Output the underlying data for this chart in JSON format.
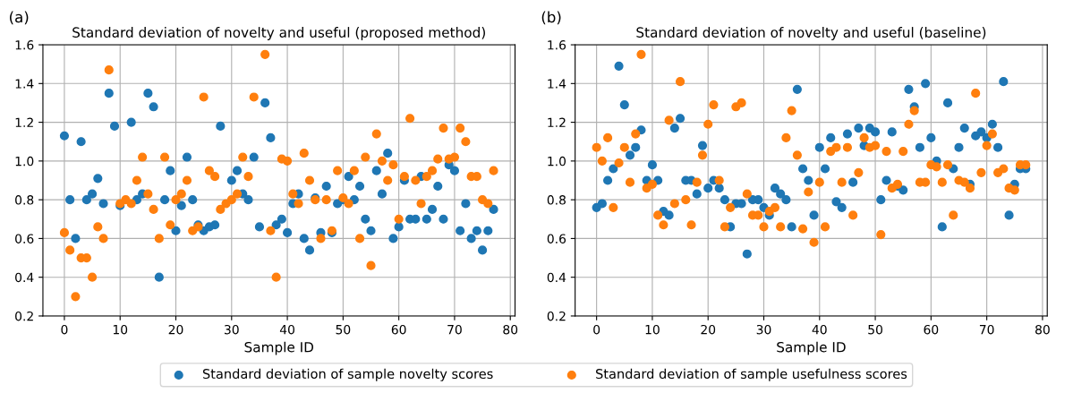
{
  "chart_data": [
    {
      "type": "scatter",
      "title": "Standard deviation of novelty and useful (proposed method)",
      "xlabel": "Sample ID",
      "annotations": [
        "(a)"
      ],
      "x": [
        0,
        1,
        2,
        3,
        4,
        5,
        6,
        7,
        8,
        9,
        10,
        11,
        12,
        13,
        14,
        15,
        16,
        17,
        18,
        19,
        20,
        21,
        22,
        23,
        24,
        25,
        26,
        27,
        28,
        29,
        30,
        31,
        32,
        33,
        34,
        35,
        36,
        37,
        38,
        39,
        40,
        41,
        42,
        43,
        44,
        45,
        46,
        47,
        48,
        49,
        50,
        51,
        52,
        53,
        54,
        55,
        56,
        57,
        58,
        59,
        60,
        61,
        62,
        63,
        64,
        65,
        66,
        67,
        68,
        69,
        70,
        71,
        72,
        73,
        74,
        75,
        76,
        77
      ],
      "series": [
        {
          "name": "Standard deviation of sample novelty scores",
          "color": "#1f77b4",
          "values": [
            1.13,
            0.8,
            0.6,
            1.1,
            0.8,
            0.83,
            0.91,
            0.78,
            1.35,
            1.18,
            0.77,
            null,
            1.2,
            0.8,
            0.83,
            1.35,
            1.28,
            0.4,
            0.8,
            0.95,
            0.64,
            0.77,
            1.02,
            0.8,
            0.67,
            0.64,
            0.66,
            0.67,
            1.18,
            null,
            0.9,
            0.95,
            0.83,
            0.8,
            1.02,
            0.66,
            1.3,
            1.12,
            0.67,
            0.7,
            0.63,
            0.78,
            0.83,
            0.6,
            0.54,
            0.81,
            0.63,
            0.87,
            0.63,
            0.78,
            0.8,
            0.92,
            0.8,
            0.87,
            0.7,
            0.64,
            0.95,
            0.83,
            1.04,
            0.6,
            0.66,
            0.9,
            0.7,
            0.7,
            0.92,
            0.7,
            0.75,
            0.87,
            0.7,
            0.98,
            0.95,
            0.64,
            0.78,
            0.6,
            0.64,
            0.54,
            0.64,
            0.75
          ]
        },
        {
          "name": "Standard deviation of sample usefulness scores",
          "color": "#ff7f0e",
          "values": [
            0.63,
            0.54,
            0.3,
            0.5,
            0.5,
            0.4,
            0.66,
            0.6,
            1.47,
            null,
            0.78,
            0.8,
            0.78,
            0.9,
            1.02,
            0.83,
            0.75,
            0.6,
            1.02,
            0.67,
            0.8,
            0.83,
            0.9,
            0.64,
            0.66,
            1.33,
            0.95,
            0.92,
            0.75,
            0.78,
            0.8,
            0.83,
            1.02,
            0.92,
            1.33,
            null,
            1.55,
            0.64,
            0.4,
            1.01,
            1.0,
            0.83,
            0.78,
            1.04,
            0.9,
            0.8,
            0.6,
            0.8,
            0.64,
            0.95,
            0.81,
            0.78,
            0.95,
            0.6,
            1.02,
            0.46,
            1.14,
            1.0,
            0.9,
            0.98,
            0.7,
            0.92,
            1.22,
            0.9,
            0.78,
            0.92,
            0.95,
            1.01,
            1.17,
            1.01,
            1.02,
            1.17,
            1.1,
            0.92,
            0.92,
            0.8,
            0.78,
            0.95
          ]
        }
      ],
      "xlim": [
        -3.85,
        80.85
      ],
      "xticks": [
        0,
        10,
        20,
        30,
        40,
        50,
        60,
        70,
        80
      ],
      "ylim": [
        0.2,
        1.6
      ],
      "yticks": [
        0.2,
        0.4,
        0.6,
        0.8,
        {
          "value": 1.0,
          "label": "1.0"
        },
        1.2,
        1.4,
        1.6
      ],
      "grid": true,
      "marker": "circle",
      "legend": "bottom"
    },
    {
      "type": "scatter",
      "title": "Standard deviation of novelty and useful (baseline)",
      "xlabel": "Sample ID",
      "annotations": [
        "(b)"
      ],
      "x": [
        0,
        1,
        2,
        3,
        4,
        5,
        6,
        7,
        8,
        9,
        10,
        11,
        12,
        13,
        14,
        15,
        16,
        17,
        18,
        19,
        20,
        21,
        22,
        23,
        24,
        25,
        26,
        27,
        28,
        29,
        30,
        31,
        32,
        33,
        34,
        35,
        36,
        37,
        38,
        39,
        40,
        41,
        42,
        43,
        44,
        45,
        46,
        47,
        48,
        49,
        50,
        51,
        52,
        53,
        54,
        55,
        56,
        57,
        58,
        59,
        60,
        61,
        62,
        63,
        64,
        65,
        66,
        67,
        68,
        69,
        70,
        71,
        72,
        73,
        74,
        75,
        76,
        77
      ],
      "series": [
        {
          "color": "#1f77b4",
          "values": [
            0.76,
            0.78,
            0.9,
            0.96,
            1.49,
            1.29,
            1.03,
            1.07,
            1.16,
            0.9,
            0.98,
            0.9,
            0.74,
            0.72,
            1.17,
            1.22,
            0.9,
            0.9,
            0.83,
            1.08,
            0.86,
            0.9,
            0.86,
            0.8,
            0.66,
            0.78,
            0.78,
            0.52,
            0.8,
            0.8,
            0.76,
            0.72,
            0.86,
            0.83,
            0.8,
            0.66,
            1.37,
            0.96,
            0.9,
            0.72,
            1.07,
            0.96,
            1.12,
            0.79,
            0.76,
            1.14,
            0.89,
            1.17,
            1.08,
            1.17,
            1.15,
            0.8,
            0.9,
            1.15,
            0.87,
            0.85,
            1.37,
            1.28,
            1.07,
            1.4,
            1.12,
            1.0,
            0.66,
            1.3,
            0.96,
            1.07,
            1.17,
            0.88,
            1.13,
            1.15,
            1.12,
            1.19,
            1.07,
            1.41,
            0.72,
            0.88,
            0.96,
            0.96
          ]
        },
        {
          "color": "#ff7f0e",
          "values": [
            1.07,
            1.0,
            1.12,
            0.76,
            0.99,
            1.07,
            0.89,
            1.14,
            1.55,
            0.86,
            0.88,
            0.72,
            0.67,
            1.21,
            0.78,
            1.41,
            0.8,
            0.67,
            0.89,
            1.03,
            1.19,
            1.29,
            0.9,
            0.66,
            0.76,
            1.28,
            1.3,
            0.83,
            0.72,
            0.72,
            0.66,
            0.74,
            0.76,
            0.66,
            1.12,
            1.26,
            1.03,
            0.65,
            0.84,
            0.58,
            0.89,
            0.66,
            1.05,
            1.07,
            0.89,
            1.07,
            0.72,
            0.94,
            1.12,
            1.07,
            1.08,
            0.62,
            1.05,
            0.86,
            0.88,
            1.05,
            1.19,
            1.26,
            0.89,
            0.89,
            0.98,
            0.97,
            0.89,
            0.98,
            0.72,
            0.9,
            0.89,
            0.86,
            1.35,
            0.94,
            1.08,
            1.14,
            0.94,
            0.96,
            0.86,
            0.85,
            0.98,
            0.98
          ]
        }
      ],
      "xlim": [
        -3.85,
        80.85
      ],
      "xticks": [
        0,
        10,
        20,
        30,
        40,
        50,
        60,
        70,
        80
      ],
      "ylim": [
        0.2,
        1.6
      ],
      "yticks": [
        0.2,
        0.4,
        0.6,
        0.8,
        {
          "value": 1.0,
          "label": "1.0"
        },
        1.2,
        1.4,
        1.6
      ],
      "grid": true,
      "marker": "circle"
    }
  ]
}
